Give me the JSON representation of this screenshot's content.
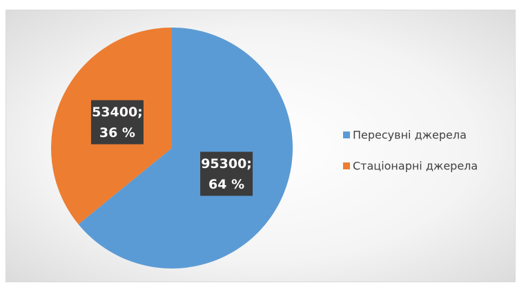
{
  "chart_data": {
    "type": "pie",
    "categories": [
      "Пересувні джерела",
      "Стаціонарні джерела"
    ],
    "values": [
      95300,
      53400
    ],
    "value_labels": [
      [
        "95300;",
        "64  %"
      ],
      [
        "53400;",
        "36 %"
      ]
    ],
    "colors": [
      "#5b9bd5",
      "#ed7d31"
    ],
    "legend": "right"
  }
}
